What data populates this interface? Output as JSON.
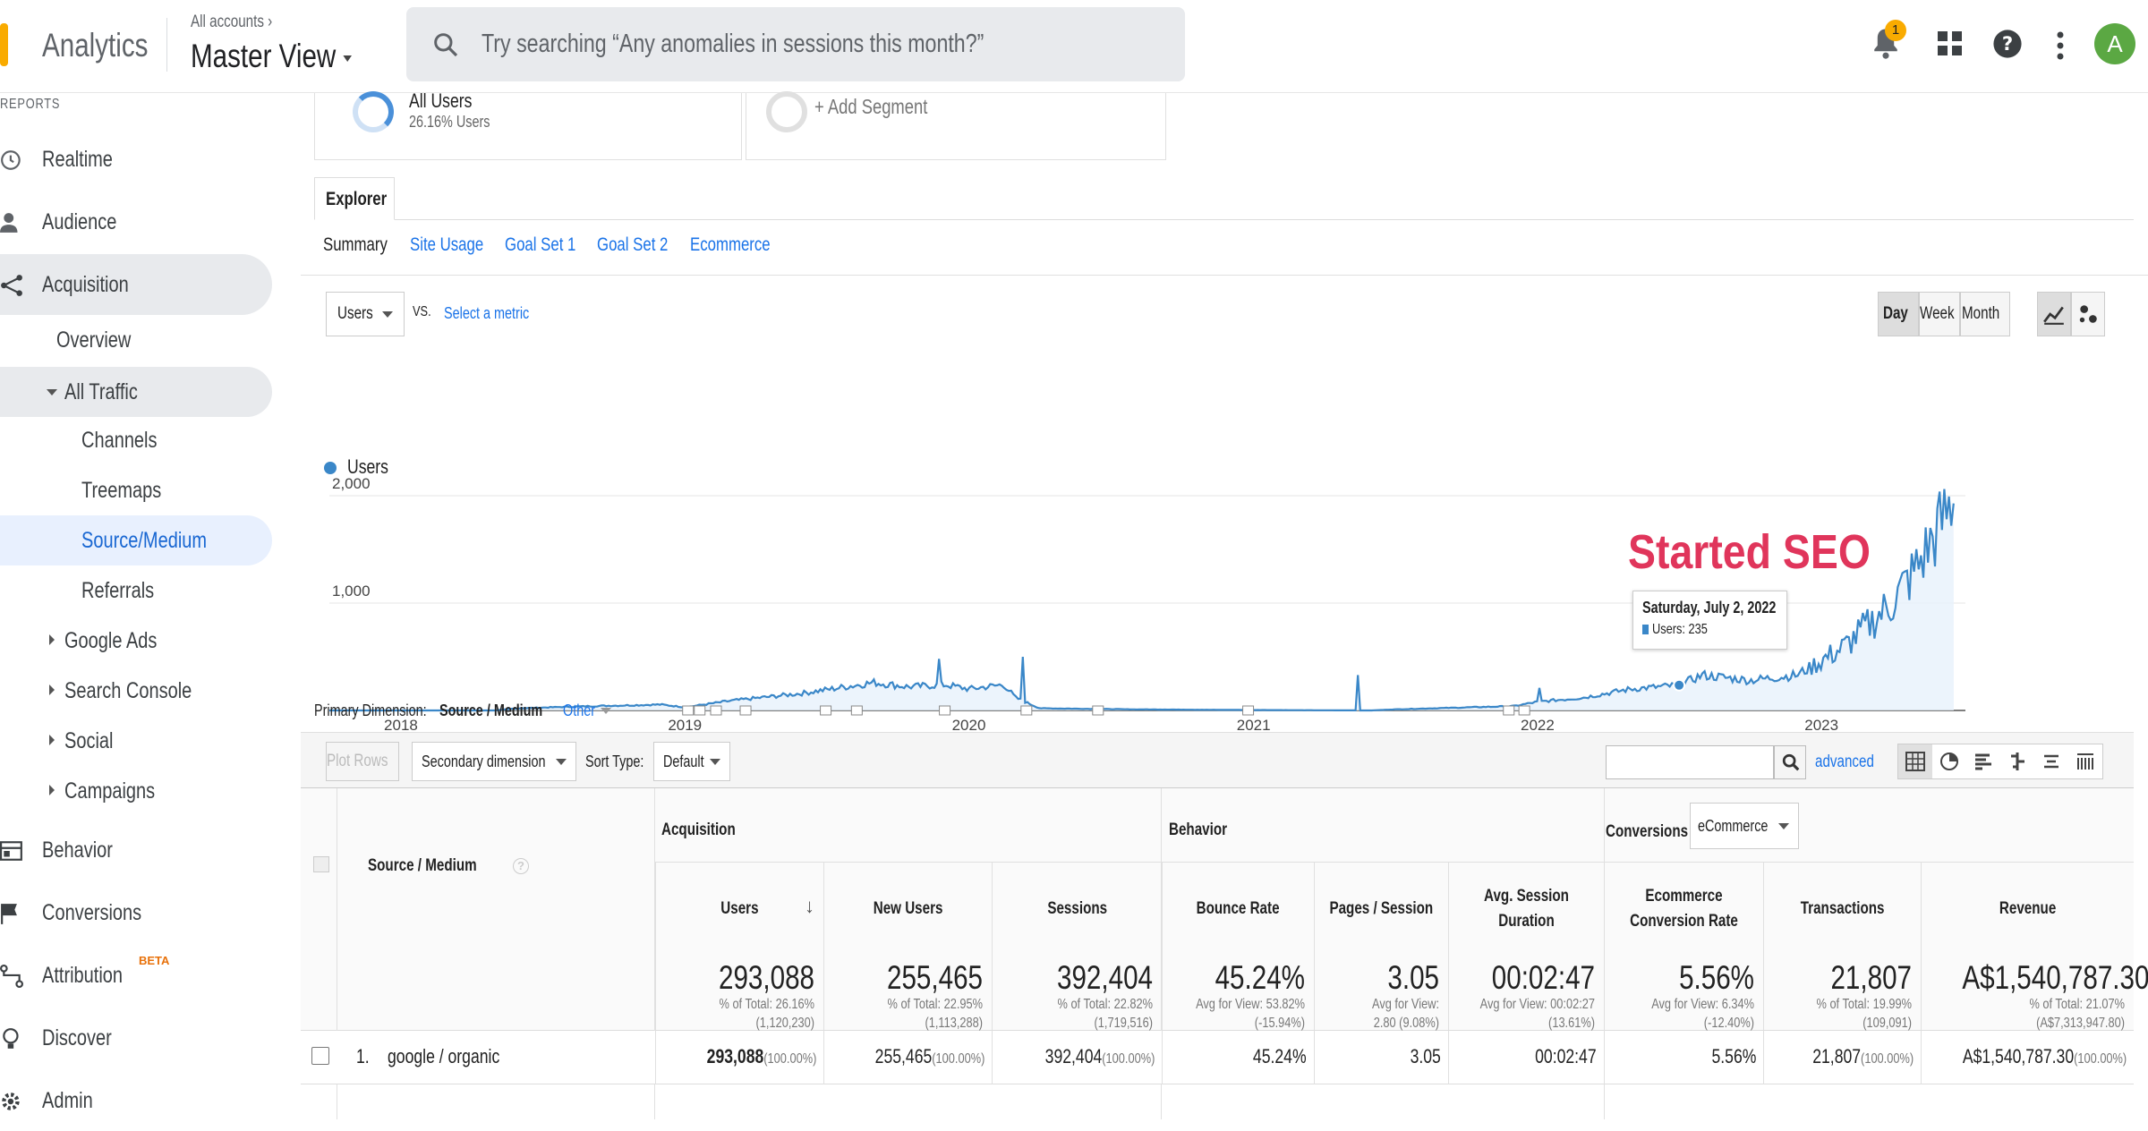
{
  "header": {
    "app_name": "Analytics",
    "account_link": "All accounts",
    "view_name": "Master View",
    "search_placeholder": "Try searching “Any anomalies in sessions this month?”",
    "notification_count": "1",
    "avatar_letter": "A"
  },
  "sidebar": {
    "section_label": "REPORTS",
    "items": [
      {
        "label": "Realtime",
        "icon": "clock-icon"
      },
      {
        "label": "Audience",
        "icon": "person-icon"
      },
      {
        "label": "Acquisition",
        "icon": "acquisition-icon"
      },
      {
        "label": "Overview"
      },
      {
        "label": "All Traffic"
      },
      {
        "label": "Channels"
      },
      {
        "label": "Treemaps"
      },
      {
        "label": "Source/Medium"
      },
      {
        "label": "Referrals"
      },
      {
        "label": "Google Ads"
      },
      {
        "label": "Search Console"
      },
      {
        "label": "Social"
      },
      {
        "label": "Campaigns"
      },
      {
        "label": "Behavior",
        "icon": "behavior-icon"
      },
      {
        "label": "Conversions",
        "icon": "flag-icon"
      },
      {
        "label": "Attribution",
        "icon": "attribution-icon",
        "badge": "BETA"
      },
      {
        "label": "Discover",
        "icon": "bulb-icon"
      },
      {
        "label": "Admin",
        "icon": "gear-icon"
      }
    ]
  },
  "segments": {
    "all_users_title": "All Users",
    "all_users_sub": "26.16% Users",
    "add_segment": "+ Add Segment"
  },
  "explorer": {
    "tab": "Explorer",
    "subtabs": [
      "Summary",
      "Site Usage",
      "Goal Set 1",
      "Goal Set 2",
      "Ecommerce"
    ],
    "metric_select": "Users",
    "vs": "VS.",
    "select_metric": "Select a metric",
    "period_buttons": [
      "Day",
      "Week",
      "Month"
    ],
    "active_period": "Day"
  },
  "chart_data": {
    "type": "line",
    "series": [
      {
        "name": "Users",
        "color": "#3a87c8",
        "points": [
          [
            "2017-10-01",
            0
          ],
          [
            "2018-05-01",
            0
          ],
          [
            "2018-06-01",
            20
          ],
          [
            "2018-09-01",
            40
          ],
          [
            "2018-12-01",
            55
          ],
          [
            "2019-01-01",
            30
          ],
          [
            "2019-03-01",
            90
          ],
          [
            "2019-06-01",
            160
          ],
          [
            "2019-09-01",
            260
          ],
          [
            "2019-10-15",
            220
          ],
          [
            "2019-12-01",
            240
          ],
          [
            "2020-01-01",
            200
          ],
          [
            "2020-02-15",
            240
          ],
          [
            "2020-03-01",
            120
          ],
          [
            "2020-04-01",
            20
          ],
          [
            "2020-08-01",
            10
          ],
          [
            "2020-12-01",
            5
          ],
          [
            "2021-06-01",
            0
          ],
          [
            "2021-07-01",
            10
          ],
          [
            "2021-12-01",
            40
          ],
          [
            "2022-01-01",
            80
          ],
          [
            "2022-03-01",
            120
          ],
          [
            "2022-05-01",
            200
          ],
          [
            "2022-07-02",
            235
          ],
          [
            "2022-08-01",
            330
          ],
          [
            "2022-10-01",
            280
          ],
          [
            "2022-12-01",
            330
          ],
          [
            "2023-02-01",
            600
          ],
          [
            "2023-04-01",
            1000
          ],
          [
            "2023-05-01",
            1300
          ],
          [
            "2023-06-01",
            1700
          ],
          [
            "2023-06-20",
            1980
          ]
        ]
      }
    ],
    "spikes": [
      [
        "2021-05-15",
        330
      ],
      [
        "2019-11-25",
        480
      ],
      [
        "2020-03-10",
        500
      ],
      [
        "2022-01-05",
        210
      ]
    ],
    "x_ticks": [
      "2018",
      "2019",
      "2020",
      "2021",
      "2022",
      "2023"
    ],
    "y_ticks": [
      "2,000",
      "1,000"
    ],
    "ylim": [
      0,
      2000
    ],
    "xlim": [
      "2017-10-01",
      "2023-07-05"
    ],
    "legend": "Users",
    "annotation": "Started SEO",
    "tooltip": {
      "date": "Saturday, July 2, 2022",
      "label": "Users: 235"
    },
    "grid": true,
    "legend_placement": "top-left"
  },
  "table_controls": {
    "primary_dimension_label": "Primary Dimension:",
    "primary_dimension": "Source / Medium",
    "other": "Other",
    "plot_rows": "Plot Rows",
    "secondary_dimension": "Secondary dimension",
    "sort_type_label": "Sort Type:",
    "sort_type": "Default",
    "advanced": "advanced"
  },
  "table": {
    "dimension_header": "Source / Medium",
    "groups": {
      "acquisition": "Acquisition",
      "behavior": "Behavior",
      "conversions": "Conversions",
      "conversions_select": "eCommerce"
    },
    "columns": [
      "Users",
      "New Users",
      "Sessions",
      "Bounce Rate",
      "Pages / Session",
      "Avg. Session Duration",
      "Ecommerce Conversion Rate",
      "Transactions",
      "Revenue"
    ],
    "totals": [
      {
        "value": "293,088",
        "sub1": "% of Total: 26.16%",
        "sub2": "(1,120,230)"
      },
      {
        "value": "255,465",
        "sub1": "% of Total: 22.95%",
        "sub2": "(1,113,288)"
      },
      {
        "value": "392,404",
        "sub1": "% of Total: 22.82%",
        "sub2": "(1,719,516)"
      },
      {
        "value": "45.24%",
        "sub1": "Avg for View: 53.82%",
        "sub2": "(-15.94%)"
      },
      {
        "value": "3.05",
        "sub1": "Avg for View:",
        "sub2": "2.80 (9.08%)"
      },
      {
        "value": "00:02:47",
        "sub1": "Avg for View: 00:02:27",
        "sub2": "(13.61%)"
      },
      {
        "value": "5.56%",
        "sub1": "Avg for View: 6.34%",
        "sub2": "(-12.40%)"
      },
      {
        "value": "21,807",
        "sub1": "% of Total: 19.99%",
        "sub2": "(109,091)"
      },
      {
        "value": "A$1,540,787.30",
        "sub1": "% of Total: 21.07%",
        "sub2": "(A$7,313,947.80)"
      }
    ],
    "rows": [
      {
        "index": "1.",
        "source": "google / organic",
        "cells": [
          {
            "v": "293,088",
            "p": "(100.00%)"
          },
          {
            "v": "255,465",
            "p": "(100.00%)"
          },
          {
            "v": "392,404",
            "p": "(100.00%)"
          },
          {
            "v": "45.24%",
            "p": ""
          },
          {
            "v": "3.05",
            "p": ""
          },
          {
            "v": "00:02:47",
            "p": ""
          },
          {
            "v": "5.56%",
            "p": ""
          },
          {
            "v": "21,807",
            "p": "(100.00%)"
          },
          {
            "v": "A$1,540,787.30",
            "p": "(100.00%)"
          }
        ]
      }
    ]
  }
}
